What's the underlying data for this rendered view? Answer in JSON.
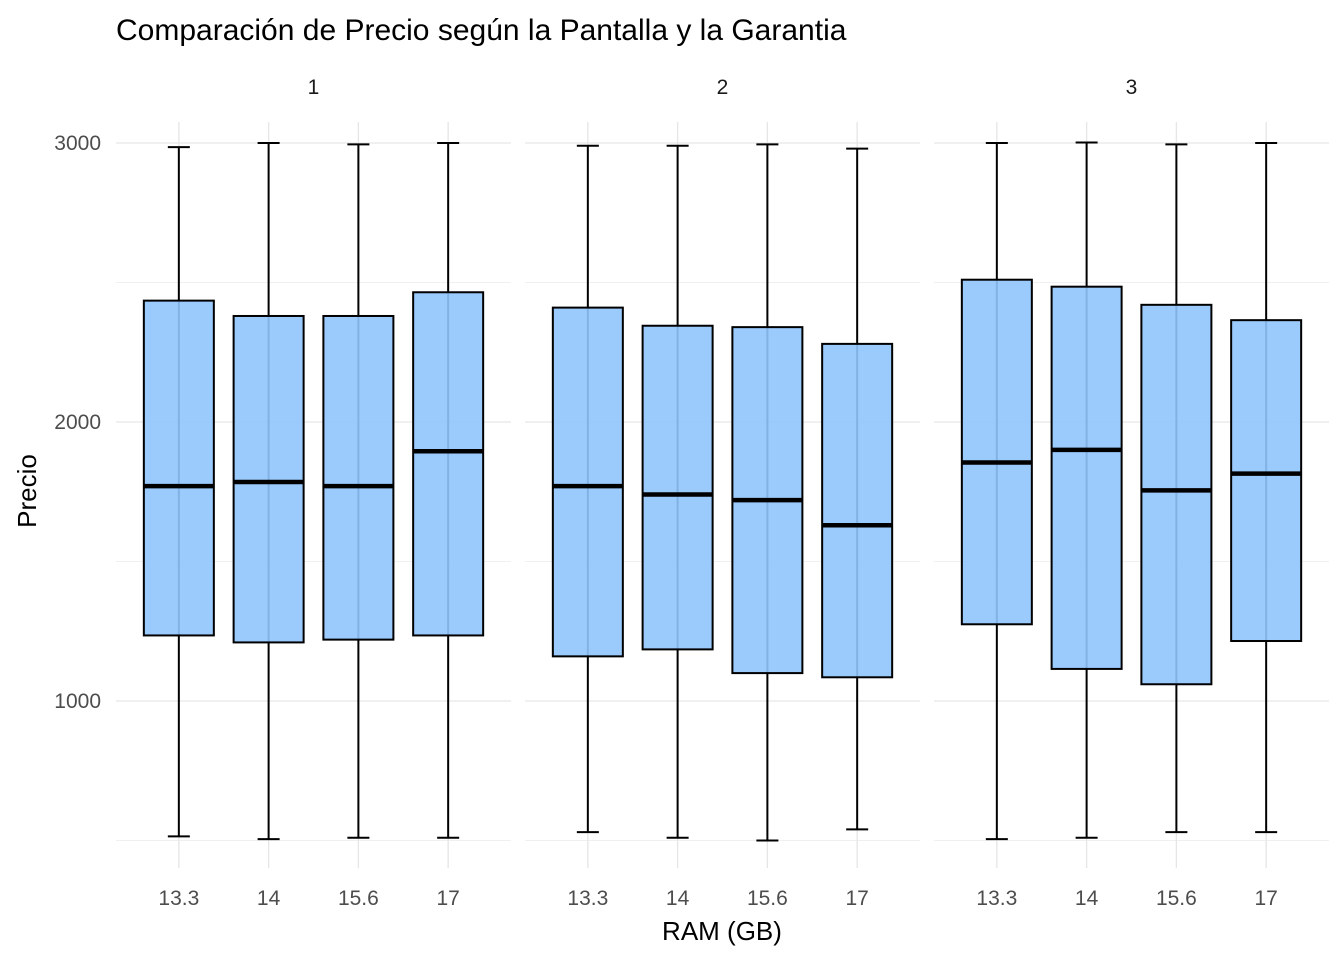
{
  "chart_data": {
    "type": "box",
    "title": "Comparación de Precio según la Pantalla y la Garantia",
    "xlabel": "RAM (GB)",
    "ylabel": "Precio",
    "ylim": [
      500,
      3000
    ],
    "y_ticks": [
      1000,
      2000,
      3000
    ],
    "y_tick_labels": [
      "1000",
      "2000",
      "3000"
    ],
    "categories": [
      "13.3",
      "14",
      "15.6",
      "17"
    ],
    "fill_color": "#90c4fd",
    "grid": true,
    "panels": [
      {
        "label": "1",
        "boxes": [
          {
            "category": "13.3",
            "min": 515,
            "q1": 1235,
            "median": 1770,
            "q3": 2435,
            "max": 2985
          },
          {
            "category": "14",
            "min": 505,
            "q1": 1210,
            "median": 1785,
            "q3": 2380,
            "max": 3000
          },
          {
            "category": "15.6",
            "min": 510,
            "q1": 1220,
            "median": 1770,
            "q3": 2380,
            "max": 2995
          },
          {
            "category": "17",
            "min": 510,
            "q1": 1235,
            "median": 1895,
            "q3": 2465,
            "max": 3000
          }
        ]
      },
      {
        "label": "2",
        "boxes": [
          {
            "category": "13.3",
            "min": 530,
            "q1": 1160,
            "median": 1770,
            "q3": 2410,
            "max": 2990
          },
          {
            "category": "14",
            "min": 510,
            "q1": 1185,
            "median": 1740,
            "q3": 2345,
            "max": 2990
          },
          {
            "category": "15.6",
            "min": 500,
            "q1": 1100,
            "median": 1720,
            "q3": 2340,
            "max": 2995
          },
          {
            "category": "17",
            "min": 540,
            "q1": 1085,
            "median": 1630,
            "q3": 2280,
            "max": 2980
          }
        ]
      },
      {
        "label": "3",
        "boxes": [
          {
            "category": "13.3",
            "min": 505,
            "q1": 1275,
            "median": 1855,
            "q3": 2510,
            "max": 3000
          },
          {
            "category": "14",
            "min": 510,
            "q1": 1115,
            "median": 1900,
            "q3": 2485,
            "max": 3002
          },
          {
            "category": "15.6",
            "min": 530,
            "q1": 1060,
            "median": 1755,
            "q3": 2420,
            "max": 2995
          },
          {
            "category": "17",
            "min": 530,
            "q1": 1215,
            "median": 1815,
            "q3": 2365,
            "max": 3000
          }
        ]
      }
    ]
  }
}
